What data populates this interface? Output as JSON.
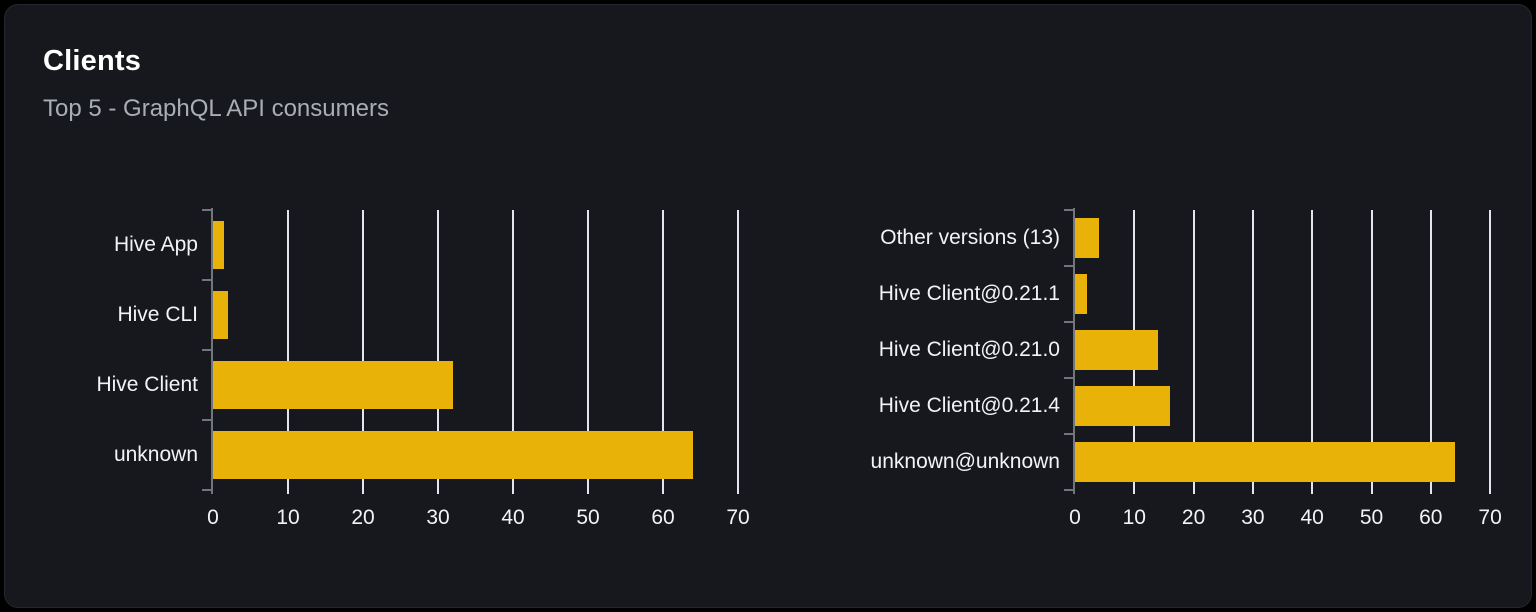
{
  "page": {
    "background": "#000000"
  },
  "card": {
    "title": "Clients",
    "subtitle": "Top 5 - GraphQL API consumers",
    "background": "#16181d",
    "border_color": "#24272e"
  },
  "colors": {
    "bar": "#e9b208",
    "grid": "#e2e5ec",
    "axis": "#71757d",
    "tick_label": "#f2f3f5",
    "category_label": "#f2f3f5",
    "title": "#ffffff",
    "subtitle": "#a9aeb5"
  },
  "chart_data": [
    {
      "type": "bar",
      "orientation": "horizontal",
      "categories": [
        "Hive App",
        "Hive CLI",
        "Hive Client",
        "unknown"
      ],
      "values": [
        1.5,
        2,
        32,
        64
      ],
      "xlim": [
        0,
        70
      ],
      "x_ticks": [
        0,
        10,
        20,
        30,
        40,
        50,
        60,
        70
      ],
      "grid": "vertical",
      "legend": "none"
    },
    {
      "type": "bar",
      "orientation": "horizontal",
      "categories": [
        "Other versions (13)",
        "Hive Client@0.21.1",
        "Hive Client@0.21.0",
        "Hive Client@0.21.4",
        "unknown@unknown"
      ],
      "values": [
        4,
        2,
        14,
        16,
        64
      ],
      "xlim": [
        0,
        70
      ],
      "x_ticks": [
        0,
        10,
        20,
        30,
        40,
        50,
        60,
        70
      ],
      "grid": "vertical",
      "legend": "none"
    }
  ]
}
